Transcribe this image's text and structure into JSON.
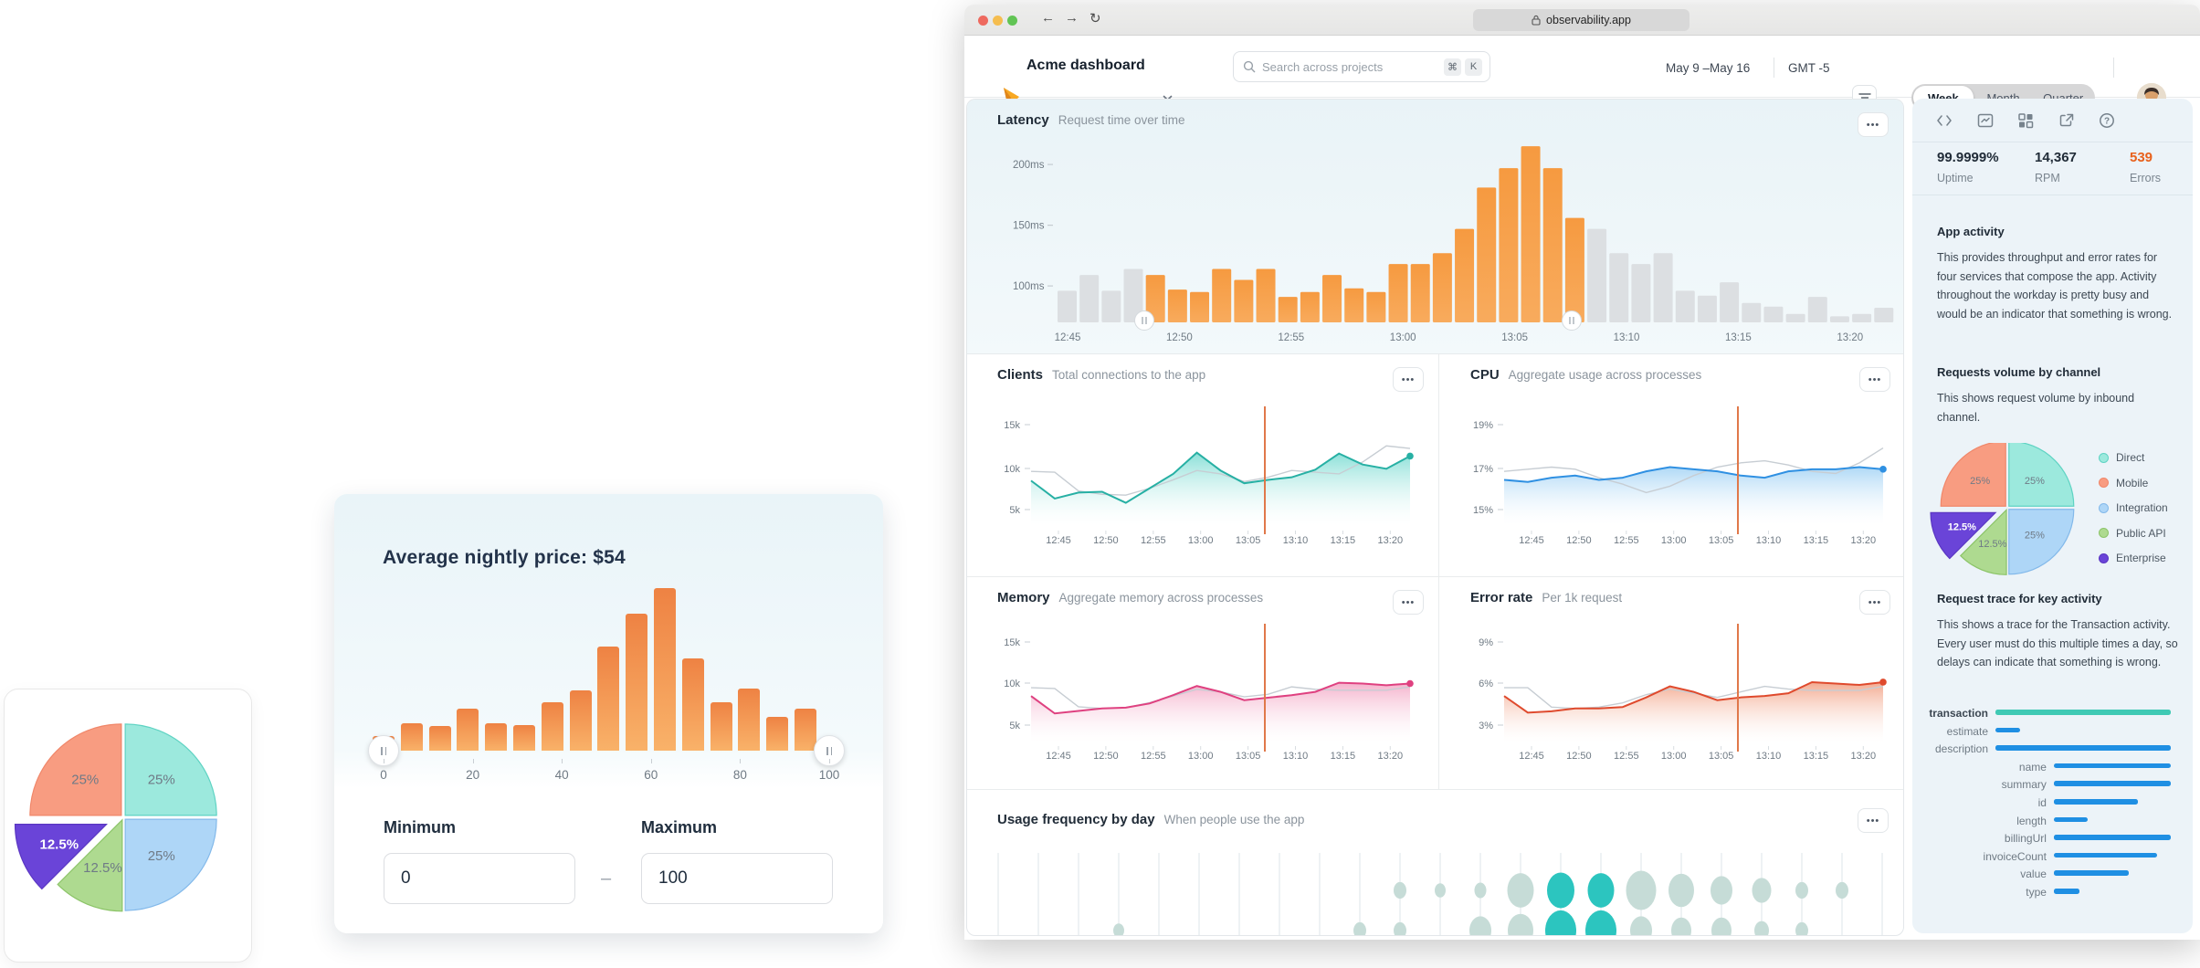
{
  "browser": {
    "url": "observability.app",
    "traffic_colors": [
      "#ee6a5f",
      "#f5bd4f",
      "#61c454"
    ],
    "back": "←",
    "forward": "→",
    "reload": "↻"
  },
  "header": {
    "app_title": "Acme dashboard",
    "search_placeholder": "Search across projects",
    "kbd_cmd": "⌘",
    "kbd_k": "K",
    "date_range": "May 9 –May 16",
    "timezone": "GMT -5",
    "segments": [
      "Week",
      "Month",
      "Quarter"
    ],
    "selected_segment": "Week"
  },
  "ui": {
    "ellipsis": "•••",
    "input_separator": "–"
  },
  "chart_data": {
    "latency": {
      "type": "bar",
      "title": "Latency",
      "subtitle": "Request time over time",
      "y_ticks": [
        {
          "label": "100ms",
          "v": 100
        },
        {
          "label": "150ms",
          "v": 150
        },
        {
          "label": "200ms",
          "v": 200
        }
      ],
      "x_labels": [
        "12:45",
        "12:50",
        "12:55",
        "13:00",
        "13:05",
        "13:10",
        "13:15",
        "13:20"
      ],
      "values_ms": [
        96,
        109,
        96,
        114,
        109,
        97,
        95,
        114,
        105,
        114,
        91,
        95,
        109,
        98,
        95,
        118,
        118,
        127,
        147,
        181,
        197,
        215,
        197,
        156,
        147,
        127,
        118,
        127,
        96,
        92,
        103,
        86,
        83,
        77,
        91,
        75,
        77,
        82
      ],
      "selection": {
        "start_index": 4,
        "end_index": 23
      },
      "colors": {
        "selected": "#f69a40",
        "selected_bottom": "#f8ab5d",
        "unselected": "#dcdfe2"
      }
    },
    "clients": {
      "type": "area",
      "title": "Clients",
      "subtitle": "Total connections to the app",
      "y_ticks": [
        "5k",
        "10k",
        "15k"
      ],
      "y_domain": [
        5,
        15
      ],
      "x_labels": [
        "12:45",
        "12:50",
        "12:55",
        "13:00",
        "13:05",
        "13:10",
        "13:15",
        "13:20"
      ],
      "series": [
        {
          "name": "current",
          "color": "#27b0a4",
          "fill": "#7ddcd3",
          "values": [
            8.4,
            6.3,
            7.0,
            7.1,
            5.8,
            7.5,
            9.2,
            11.7,
            9.6,
            8.1,
            8.5,
            8.8,
            9.7,
            11.6,
            10.3,
            9.8,
            11.3
          ]
        },
        {
          "name": "previous",
          "color": "#c7cdd3",
          "values": [
            9.5,
            9.4,
            7.2,
            6.8,
            6.7,
            7.5,
            8.5,
            9.6,
            9.2,
            8.3,
            8.8,
            9.6,
            9.4,
            9.2,
            10.6,
            12.5,
            12.2
          ]
        }
      ],
      "marker_color": "#e0784a"
    },
    "cpu": {
      "type": "area",
      "title": "CPU",
      "subtitle": "Aggregate usage across processes",
      "y_ticks": [
        "15%",
        "17%",
        "19%"
      ],
      "y_domain": [
        15,
        19
      ],
      "x_labels": [
        "12:45",
        "12:50",
        "12:55",
        "13:00",
        "13:05",
        "13:10",
        "13:15",
        "13:20"
      ],
      "series": [
        {
          "name": "current",
          "color": "#2f90e2",
          "fill": "#a6d4f5",
          "values": [
            16.4,
            16.3,
            16.5,
            16.6,
            16.4,
            16.5,
            16.8,
            17.0,
            16.9,
            16.8,
            16.6,
            16.5,
            16.8,
            16.9,
            16.9,
            17.0,
            16.9
          ]
        },
        {
          "name": "previous",
          "color": "#c7cdd3",
          "values": [
            16.8,
            16.9,
            17.0,
            16.9,
            16.5,
            16.2,
            15.8,
            16.1,
            16.6,
            17.0,
            17.2,
            17.3,
            17.1,
            16.8,
            16.7,
            17.2,
            17.9
          ]
        }
      ],
      "marker_color": "#e0784a"
    },
    "memory": {
      "type": "area",
      "title": "Memory",
      "subtitle": "Aggregate memory across processes",
      "y_ticks": [
        "5k",
        "10k",
        "15k"
      ],
      "y_domain": [
        5,
        15
      ],
      "x_labels": [
        "12:45",
        "12:50",
        "12:55",
        "13:00",
        "13:05",
        "13:10",
        "13:15",
        "13:20"
      ],
      "series": [
        {
          "name": "current",
          "color": "#df4180",
          "fill": "#f3a9c6",
          "values": [
            8.5,
            6.4,
            6.7,
            7.0,
            7.1,
            7.6,
            8.6,
            9.7,
            9.0,
            8.0,
            8.3,
            8.6,
            9.0,
            10.1,
            10.0,
            9.8,
            10.0
          ]
        },
        {
          "name": "previous",
          "color": "#c7cdd3",
          "values": [
            9.5,
            9.4,
            7.2,
            7.0,
            7.1,
            7.7,
            8.5,
            9.3,
            9.0,
            8.4,
            8.7,
            9.6,
            9.3,
            9.2,
            9.2,
            9.2,
            9.6
          ]
        }
      ],
      "marker_color": "#e0784a"
    },
    "error_rate": {
      "type": "area",
      "title": "Error rate",
      "subtitle": "Per 1k request",
      "y_ticks": [
        "3%",
        "6%",
        "9%"
      ],
      "y_domain": [
        3,
        9
      ],
      "x_labels": [
        "12:45",
        "12:50",
        "12:55",
        "13:00",
        "13:05",
        "13:10",
        "13:15",
        "13:20"
      ],
      "series": [
        {
          "name": "current",
          "color": "#df4a2d",
          "fill": "#f2a184",
          "values": [
            5.1,
            3.9,
            4.0,
            4.2,
            4.2,
            4.3,
            5.0,
            5.8,
            5.4,
            4.8,
            5.0,
            5.1,
            5.3,
            6.1,
            6.0,
            5.9,
            6.1
          ]
        },
        {
          "name": "previous",
          "color": "#c7cdd3",
          "values": [
            5.7,
            5.7,
            4.3,
            4.2,
            4.3,
            4.6,
            5.2,
            5.6,
            5.3,
            5.0,
            5.4,
            5.8,
            5.6,
            5.5,
            5.5,
            5.5,
            5.8
          ]
        }
      ],
      "marker_color": "#e0784a"
    },
    "usage": {
      "type": "bubble",
      "title": "Usage frequency by day",
      "subtitle": "When people use the app",
      "colors": {
        "base": "#c6dcd7",
        "hot": "#2cc5bf"
      },
      "rows": [
        {
          "bubbles": [
            {
              "col": 10,
              "r": 7
            },
            {
              "col": 11,
              "r": 6
            },
            {
              "col": 12,
              "r": 6.5
            },
            {
              "col": 13,
              "r": 14.5
            },
            {
              "col": 14,
              "r": 15,
              "hot": true
            },
            {
              "col": 15,
              "r": 14.5,
              "hot": true
            },
            {
              "col": 16,
              "r": 16.5
            },
            {
              "col": 17,
              "r": 14
            },
            {
              "col": 18,
              "r": 12
            },
            {
              "col": 19,
              "r": 10.5
            },
            {
              "col": 20,
              "r": 7
            },
            {
              "col": 21,
              "r": 7
            }
          ]
        },
        {
          "bubbles": [
            {
              "col": 3,
              "r": 6
            },
            {
              "col": 9,
              "r": 7
            },
            {
              "col": 10,
              "r": 7
            },
            {
              "col": 12,
              "r": 12
            },
            {
              "col": 13,
              "r": 14
            },
            {
              "col": 14,
              "r": 17,
              "hot": true
            },
            {
              "col": 15,
              "r": 17,
              "hot": true
            },
            {
              "col": 16,
              "r": 12
            },
            {
              "col": 17,
              "r": 11
            },
            {
              "col": 18,
              "r": 11
            },
            {
              "col": 19,
              "r": 8
            },
            {
              "col": 20,
              "r": 7
            }
          ]
        }
      ]
    },
    "price_histogram": {
      "type": "histogram",
      "title": "Average nightly price: $54",
      "values": [
        9,
        17,
        15,
        26,
        17,
        16,
        30,
        37,
        64,
        84,
        100,
        57,
        30,
        38,
        21,
        26
      ],
      "x_ticks": [
        "0",
        "20",
        "40",
        "60",
        "80",
        "100"
      ],
      "min_label": "Minimum",
      "min_value": "0",
      "max_label": "Maximum",
      "max_value": "100"
    },
    "channel_pie": {
      "type": "pie",
      "slices": [
        {
          "label": "Direct",
          "value": 25,
          "pct": "25%",
          "color": "#9ce9dd",
          "stroke": "#5fd3c3",
          "a0": 0,
          "a1": 90
        },
        {
          "label": "Mobile",
          "value": 25,
          "pct": "25%",
          "color": "#f89c81",
          "stroke": "#f0876a",
          "a0": 270,
          "a1": 360
        },
        {
          "label": "Integration",
          "value": 25,
          "pct": "25%",
          "color": "#aed6f7",
          "stroke": "#83b9ea",
          "a0": 90,
          "a1": 180
        },
        {
          "label": "Public API",
          "value": 12.5,
          "pct": "12.5%",
          "color": "#aeda90",
          "stroke": "#8cc468",
          "a0": 180,
          "a1": 225
        },
        {
          "label": "Enterprise",
          "value": 12.5,
          "pct": "12.5%",
          "color": "#6a44d8",
          "stroke": "#5a36c2",
          "a0": 225,
          "a1": 270,
          "exploded": true,
          "label_color": "#ffffff"
        }
      ]
    },
    "trace": {
      "type": "bar",
      "default_color": "#1f8fe3",
      "rows": [
        {
          "label": "transaction",
          "start": 0,
          "end": 100,
          "color": "#3fc9b4",
          "bold": true
        },
        {
          "label": "estimate",
          "start": 0,
          "end": 14
        },
        {
          "label": "description",
          "start": 0,
          "end": 100
        },
        {
          "label": "name",
          "start": 33.3,
          "end": 100
        },
        {
          "label": "summary",
          "start": 33.3,
          "end": 100
        },
        {
          "label": "id",
          "start": 33.3,
          "end": 81
        },
        {
          "label": "length",
          "start": 33.3,
          "end": 52.5
        },
        {
          "label": "billingUrl",
          "start": 33.3,
          "end": 100
        },
        {
          "label": "invoiceCount",
          "start": 33.3,
          "end": 92
        },
        {
          "label": "value",
          "start": 33.3,
          "end": 76
        },
        {
          "label": "type",
          "start": 33.3,
          "end": 48
        }
      ]
    }
  },
  "sidebar": {
    "stats": [
      {
        "value": "99.9999%",
        "label": "Uptime"
      },
      {
        "value": "14,367",
        "label": "RPM"
      },
      {
        "value": "539",
        "label": "Errors",
        "color": "#e8611c"
      }
    ],
    "sections": {
      "app_activity": {
        "heading": "App activity",
        "body": "This provides throughput and error rates for four services that compose the app. Activity throughout the workday is pretty busy and would be an indicator that something is wrong."
      },
      "requests_volume": {
        "heading": "Requests volume by channel",
        "body": "This shows request volume by inbound channel."
      },
      "request_trace": {
        "heading": "Request trace for key activity",
        "body": "This shows a trace for the Transaction activity. Every user must do this multiple times a day, so delays can indicate that something is wrong."
      }
    }
  }
}
